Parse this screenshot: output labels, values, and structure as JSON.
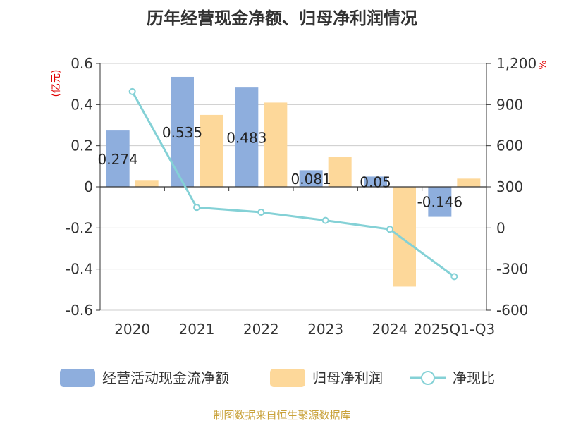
{
  "chart_data": {
    "type": "bar",
    "title": "历年经营现金净额、归母净利润情况",
    "categories": [
      "2020",
      "2021",
      "2022",
      "2023",
      "2024",
      "2025Q1-Q3"
    ],
    "series": [
      {
        "name": "经营活动现金流净额",
        "type": "bar",
        "axis": "left",
        "color": "#8eaedd",
        "values": [
          0.274,
          0.535,
          0.483,
          0.081,
          0.05,
          -0.146
        ],
        "labels": [
          "0.274",
          "0.535",
          "0.483",
          "0.081",
          "0.05",
          "-0.146"
        ]
      },
      {
        "name": "归母净利润",
        "type": "bar",
        "axis": "left",
        "color": "#fdd89a",
        "values": [
          0.03,
          0.35,
          0.41,
          0.145,
          -0.485,
          0.04
        ]
      },
      {
        "name": "净现比",
        "type": "line",
        "axis": "right",
        "color": "#84d1d6",
        "values": [
          995,
          150,
          115,
          55,
          -10,
          -355
        ]
      }
    ],
    "y_left": {
      "unit": "(亿元)",
      "min": -0.6,
      "max": 0.6,
      "ticks": [
        0.6,
        0.4,
        0.2,
        0,
        -0.2,
        -0.4,
        -0.6
      ],
      "tick_labels": [
        "0.6",
        "0.4",
        "0.2",
        "0",
        "-0.2",
        "-0.4",
        "-0.6"
      ]
    },
    "y_right": {
      "unit": "%",
      "min": -600,
      "max": 1200,
      "ticks": [
        1200,
        900,
        600,
        300,
        0,
        -300,
        -600
      ],
      "tick_labels": [
        "1,200",
        "900",
        "600",
        "300",
        "0",
        "-300",
        "-600"
      ]
    },
    "grid": true,
    "legend_position": "bottom"
  },
  "source": "制图数据来自恒生聚源数据库"
}
